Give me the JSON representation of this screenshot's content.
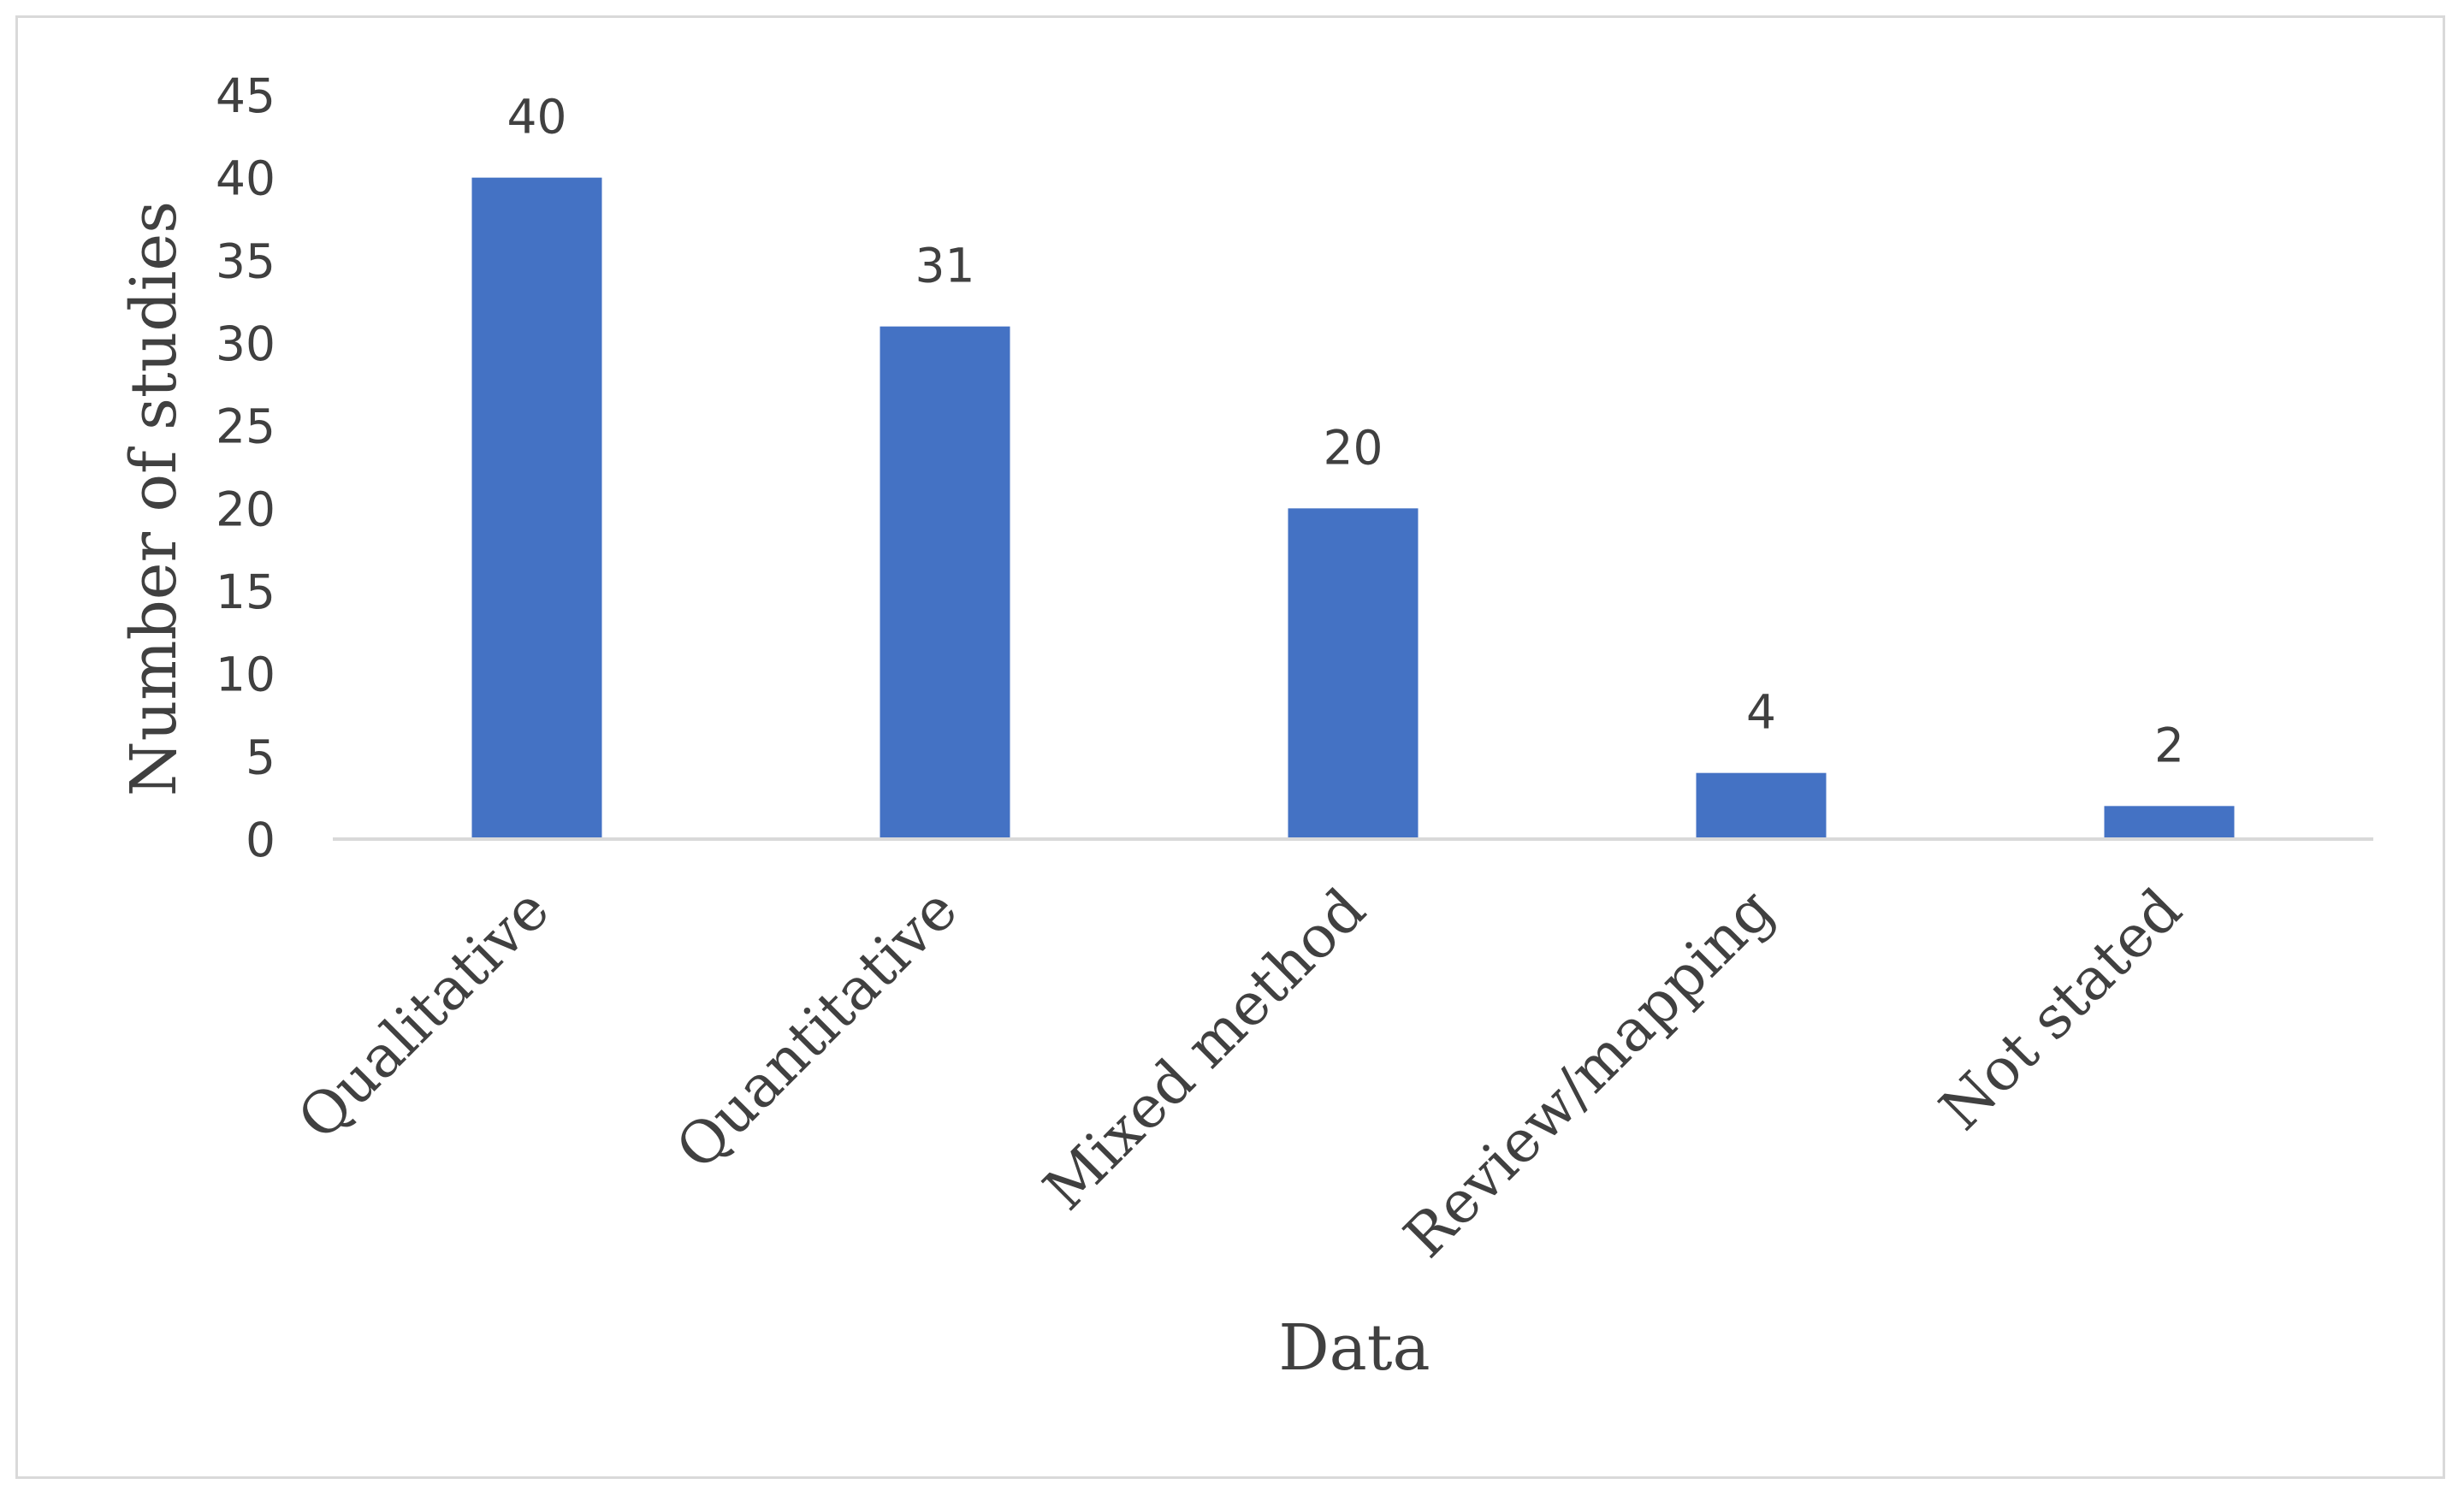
{
  "chart_data": {
    "type": "bar",
    "categories": [
      "Qualitative",
      "Quantitative",
      "Mixed method",
      "Review/mapping",
      "Not stated"
    ],
    "values": [
      40,
      31,
      20,
      4,
      2
    ],
    "data_labels": [
      "40",
      "31",
      "20",
      "4",
      "2"
    ],
    "xlabel": "Data",
    "ylabel": "Number of studies",
    "ylim": [
      0,
      45
    ],
    "yticks": [
      0,
      5,
      10,
      15,
      20,
      25,
      30,
      35,
      40,
      45
    ],
    "ytick_labels": [
      "0",
      "5",
      "10",
      "15",
      "20",
      "25",
      "30",
      "35",
      "40",
      "45"
    ],
    "grid": false,
    "legend": "none",
    "bar_color": "#4472c4",
    "axis_color": "#d9d9d9",
    "text_color": "#404040"
  }
}
